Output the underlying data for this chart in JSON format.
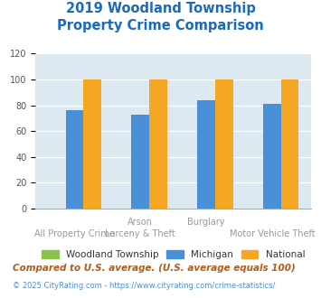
{
  "title_line1": "2019 Woodland Township",
  "title_line2": "Property Crime Comparison",
  "title_color": "#1a6bbf",
  "woodland_values": [
    0,
    0,
    0,
    0
  ],
  "michigan_values": [
    76,
    73,
    84,
    81
  ],
  "national_values": [
    100,
    100,
    100,
    100
  ],
  "woodland_color": "#8bc34a",
  "michigan_color": "#4a90d9",
  "national_color": "#f5a623",
  "ylim": [
    0,
    120
  ],
  "yticks": [
    0,
    20,
    40,
    60,
    80,
    100,
    120
  ],
  "background_color": "#dce9f0",
  "legend_labels": [
    "Woodland Township",
    "Michigan",
    "National"
  ],
  "top_labels": [
    "",
    "Arson",
    "Burglary",
    ""
  ],
  "bot_labels": [
    "All Property Crime",
    "Larceny & Theft",
    "",
    "Motor Vehicle Theft"
  ],
  "footnote1": "Compared to U.S. average. (U.S. average equals 100)",
  "footnote2": "© 2025 CityRating.com - https://www.cityrating.com/crime-statistics/",
  "footnote1_color": "#b05c1a",
  "footnote2_color": "#4a90d9",
  "footnote2_link_color": "#4a90d9"
}
